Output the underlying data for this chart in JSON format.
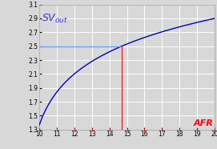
{
  "xlim": [
    10,
    20
  ],
  "ylim": [
    1.3,
    3.1
  ],
  "xticks": [
    10,
    11,
    12,
    13,
    14,
    15,
    16,
    17,
    18,
    19,
    20
  ],
  "yticks": [
    1.3,
    1.5,
    1.7,
    1.9,
    2.1,
    2.3,
    2.5,
    2.7,
    2.9,
    3.1
  ],
  "curve_color": "#0000bb",
  "hline_color": "#5599ff",
  "vline_color": "#ff0000",
  "hline_y": 2.5,
  "vline_x": 14.7,
  "bg_color": "#d8d8d8",
  "grid_color": "#ffffff",
  "title_color": "#3333dd",
  "xlabel_color": "#ff0000",
  "log_a": 0.593,
  "log_b": 9.2,
  "log_c": 1.489
}
